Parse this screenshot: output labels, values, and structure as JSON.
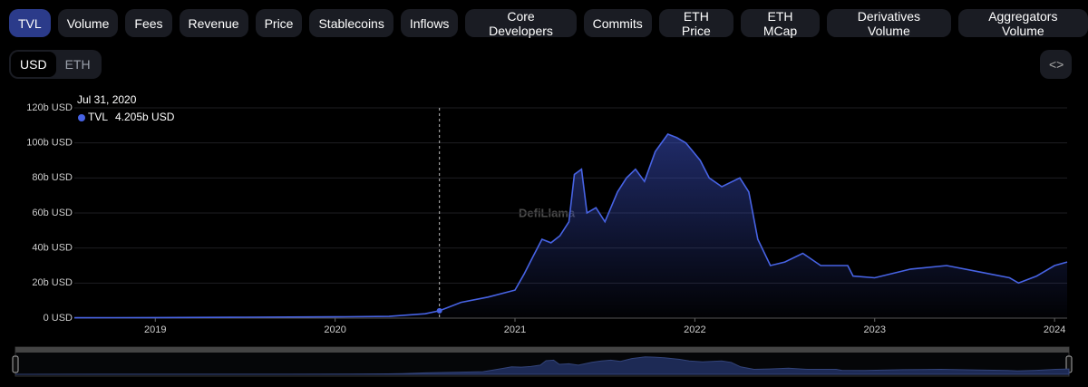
{
  "tabs": [
    "TVL",
    "Volume",
    "Fees",
    "Revenue",
    "Price",
    "Stablecoins",
    "Inflows",
    "Core Developers",
    "Commits",
    "ETH Price",
    "ETH MCap",
    "Derivatives Volume",
    "Aggregators Volume"
  ],
  "currency_toggle": [
    "USD",
    "ETH"
  ],
  "watermark": "DefiLlama",
  "chart_data": {
    "type": "area",
    "series": [
      {
        "name": "TVL",
        "color": "#4763e4",
        "values": [
          0.2,
          0.3,
          0.5,
          0.7,
          1.0,
          2.5,
          4.205,
          9,
          12,
          16,
          25,
          35,
          45,
          43,
          47,
          55,
          82,
          85,
          60,
          63,
          55,
          72,
          80,
          85,
          78,
          95,
          105,
          103,
          100,
          90,
          80,
          75,
          80,
          72,
          45,
          30,
          32,
          37,
          30,
          30,
          24,
          23,
          28,
          30,
          26,
          23,
          20,
          24,
          30,
          32
        ]
      }
    ],
    "x": [
      2018.55,
      2019,
      2019.5,
      2020,
      2020.3,
      2020.5,
      2020.58,
      2020.7,
      2020.85,
      2021.0,
      2021.05,
      2021.1,
      2021.15,
      2021.2,
      2021.25,
      2021.3,
      2021.33,
      2021.37,
      2021.4,
      2021.45,
      2021.5,
      2021.57,
      2021.62,
      2021.67,
      2021.72,
      2021.78,
      2021.85,
      2021.9,
      2021.95,
      2022.03,
      2022.08,
      2022.15,
      2022.25,
      2022.3,
      2022.35,
      2022.42,
      2022.5,
      2022.6,
      2022.7,
      2022.85,
      2022.88,
      2023.0,
      2023.2,
      2023.4,
      2023.6,
      2023.75,
      2023.8,
      2023.9,
      2024.0,
      2024.07
    ],
    "xlim": [
      2018.55,
      2024.07
    ],
    "xticks": [
      2019,
      2020,
      2021,
      2022,
      2023,
      2024
    ],
    "ylim": [
      0,
      120
    ],
    "yticks": [
      {
        "value": 0,
        "label": "0 USD"
      },
      {
        "value": 20,
        "label": "20b USD"
      },
      {
        "value": 40,
        "label": "40b USD"
      },
      {
        "value": 60,
        "label": "60b USD"
      },
      {
        "value": 80,
        "label": "80b USD"
      },
      {
        "value": 100,
        "label": "100b USD"
      },
      {
        "value": 120,
        "label": "120b USD"
      }
    ],
    "grid": true,
    "tooltip": {
      "x": 2020.58,
      "date": "Jul 31, 2020",
      "value": 4.205,
      "value_label": "4.205b USD"
    }
  }
}
